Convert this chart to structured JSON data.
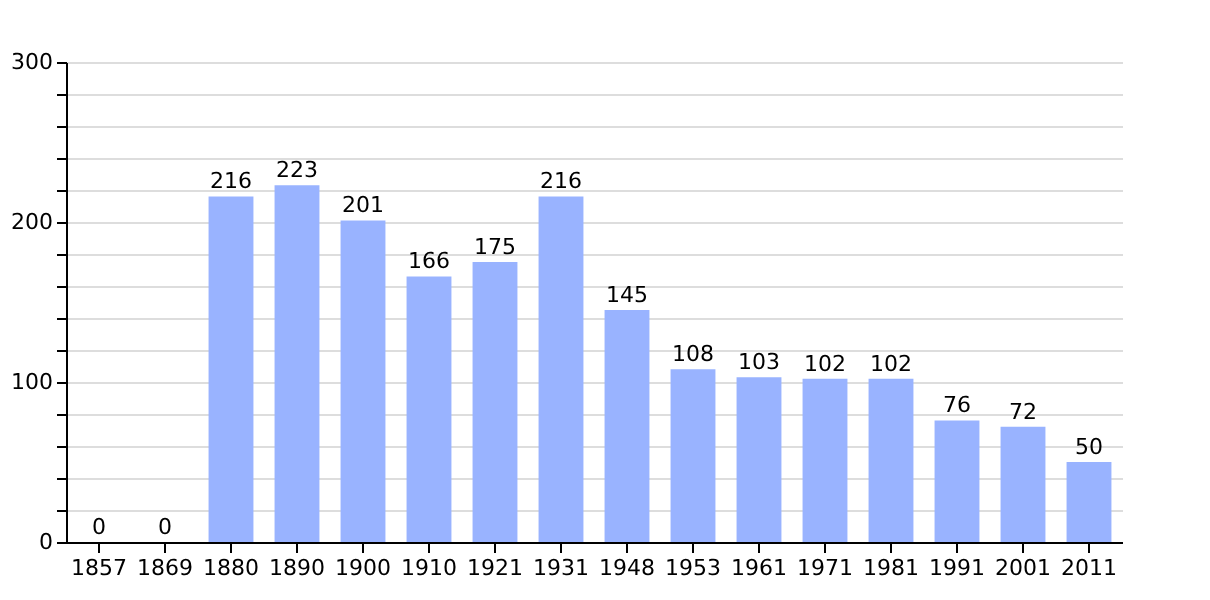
{
  "chart_data": {
    "type": "bar",
    "categories": [
      "1857",
      "1869",
      "1880",
      "1890",
      "1900",
      "1910",
      "1921",
      "1931",
      "1948",
      "1953",
      "1961",
      "1971",
      "1981",
      "1991",
      "2001",
      "2011"
    ],
    "values": [
      0,
      0,
      216,
      223,
      201,
      166,
      175,
      216,
      145,
      108,
      103,
      102,
      102,
      76,
      72,
      50
    ],
    "color": "#99b3ff",
    "ylim": [
      0,
      300
    ],
    "yticks": [
      0,
      {
        "value": 20,
        "label": null
      },
      {
        "value": 40,
        "label": null
      },
      {
        "value": 60,
        "label": null
      },
      {
        "value": 80,
        "label": null
      },
      100,
      {
        "value": 120,
        "label": null
      },
      {
        "value": 140,
        "label": null
      },
      {
        "value": 160,
        "label": null
      },
      {
        "value": 180,
        "label": null
      },
      200,
      {
        "value": 220,
        "label": null
      },
      {
        "value": 240,
        "label": null
      },
      {
        "value": 260,
        "label": null
      },
      {
        "value": 280,
        "label": null
      },
      300
    ],
    "grid": "y",
    "data_labels": true
  }
}
